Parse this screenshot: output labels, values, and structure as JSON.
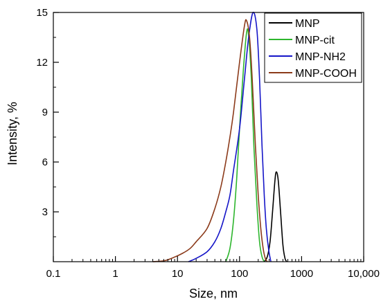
{
  "chart_data": {
    "type": "line",
    "title": "",
    "xlabel": "Size, nm",
    "ylabel": "Intensity, %",
    "xscale": "log",
    "xlim": [
      0.1,
      10000
    ],
    "ylim": [
      0,
      15
    ],
    "xticks": [
      {
        "value": 0.1,
        "label": "0.1"
      },
      {
        "value": 1,
        "label": "1"
      },
      {
        "value": 10,
        "label": "10"
      },
      {
        "value": 100,
        "label": "100"
      },
      {
        "value": 1000,
        "label": "1000"
      },
      {
        "value": 10000,
        "label": "10,000"
      }
    ],
    "yticks": [
      {
        "value": 3,
        "label": "3"
      },
      {
        "value": 6,
        "label": "6"
      },
      {
        "value": 9,
        "label": "9"
      },
      {
        "value": 12,
        "label": "12"
      },
      {
        "value": 15,
        "label": "15"
      }
    ],
    "grid": false,
    "legend_position": "top-right",
    "series": [
      {
        "name": "MNP",
        "color": "#000000",
        "points": [
          [
            250,
            0
          ],
          [
            280,
            0.3
          ],
          [
            310,
            1.2
          ],
          [
            340,
            3.0
          ],
          [
            370,
            4.8
          ],
          [
            390,
            5.4
          ],
          [
            420,
            4.9
          ],
          [
            460,
            2.9
          ],
          [
            500,
            1.0
          ],
          [
            540,
            0.2
          ],
          [
            580,
            0
          ]
        ]
      },
      {
        "name": "MNP-cit",
        "color": "#2db52d",
        "points": [
          [
            60,
            0
          ],
          [
            70,
            0.8
          ],
          [
            80,
            2.5
          ],
          [
            90,
            5.0
          ],
          [
            100,
            8.0
          ],
          [
            115,
            11.5
          ],
          [
            130,
            13.8
          ],
          [
            140,
            13.6
          ],
          [
            155,
            11.0
          ],
          [
            170,
            7.0
          ],
          [
            190,
            3.5
          ],
          [
            210,
            1.2
          ],
          [
            230,
            0.3
          ],
          [
            250,
            0
          ]
        ]
      },
      {
        "name": "MNP-NH2",
        "color": "#1515c8",
        "points": [
          [
            15,
            0
          ],
          [
            20,
            0.2
          ],
          [
            30,
            0.6
          ],
          [
            40,
            1.2
          ],
          [
            50,
            2.0
          ],
          [
            60,
            3.0
          ],
          [
            70,
            4.0
          ],
          [
            80,
            5.5
          ],
          [
            100,
            8.0
          ],
          [
            120,
            11.0
          ],
          [
            140,
            13.5
          ],
          [
            165,
            15.0
          ],
          [
            190,
            14.0
          ],
          [
            210,
            11.0
          ],
          [
            230,
            7.0
          ],
          [
            250,
            4.0
          ],
          [
            270,
            2.0
          ],
          [
            295,
            0.7
          ],
          [
            320,
            0
          ]
        ]
      },
      {
        "name": "MNP-COOH",
        "color": "#8b3a1a",
        "points": [
          [
            4,
            0
          ],
          [
            6,
            0.05
          ],
          [
            8,
            0.2
          ],
          [
            12,
            0.5
          ],
          [
            16,
            0.8
          ],
          [
            20,
            1.2
          ],
          [
            30,
            2.0
          ],
          [
            40,
            3.2
          ],
          [
            50,
            4.5
          ],
          [
            60,
            6.0
          ],
          [
            70,
            7.5
          ],
          [
            80,
            9.0
          ],
          [
            100,
            12.0
          ],
          [
            120,
            14.2
          ],
          [
            130,
            14.5
          ],
          [
            145,
            13.5
          ],
          [
            160,
            11.0
          ],
          [
            180,
            7.0
          ],
          [
            200,
            4.0
          ],
          [
            220,
            2.0
          ],
          [
            240,
            0.8
          ],
          [
            260,
            0.2
          ],
          [
            280,
            0
          ]
        ]
      }
    ]
  }
}
